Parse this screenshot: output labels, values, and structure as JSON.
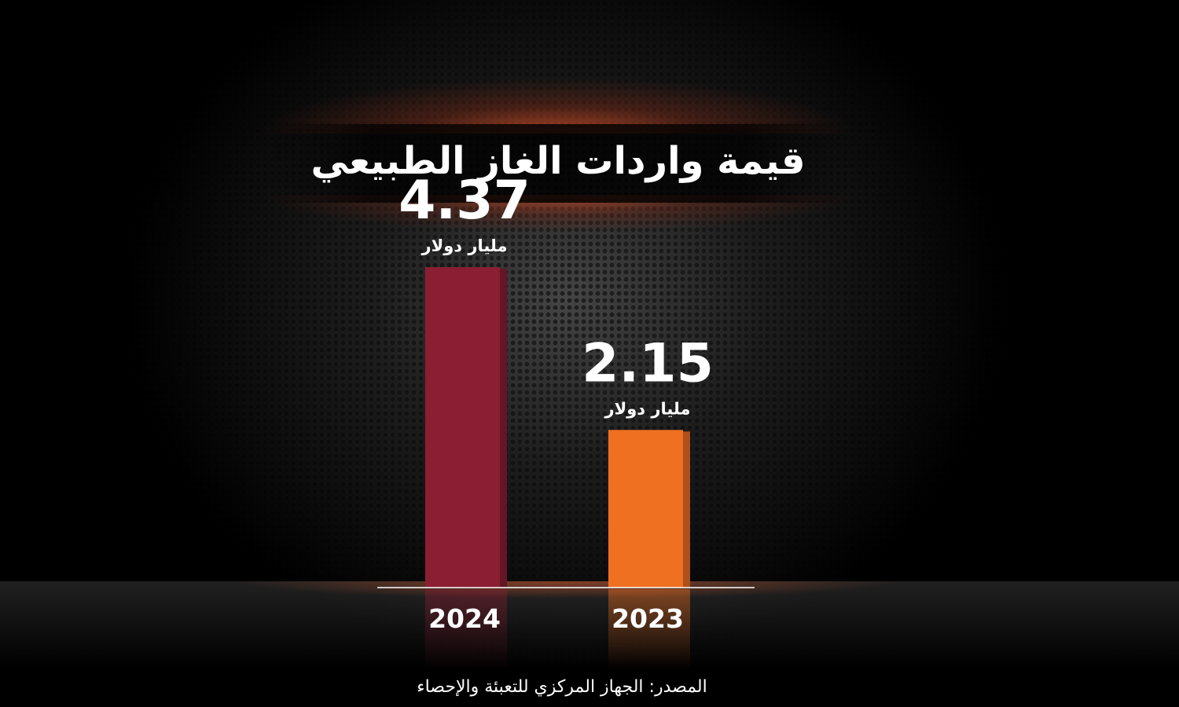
{
  "chart_data": {
    "type": "bar",
    "title": "قيمة واردات الغاز الطبيعي",
    "categories": [
      "2024",
      "2023"
    ],
    "values": [
      4.37,
      2.15
    ],
    "value_labels": [
      "4.37",
      "2.15"
    ],
    "unit": "مليار دولار",
    "colors": [
      "#8b1e32",
      "#f07022"
    ],
    "xlabel": "",
    "ylabel": "",
    "ylim": [
      0,
      5.1
    ],
    "grid": false
  },
  "source": "المصدر: الجهاز المركزي للتعبئة والإحصاء"
}
